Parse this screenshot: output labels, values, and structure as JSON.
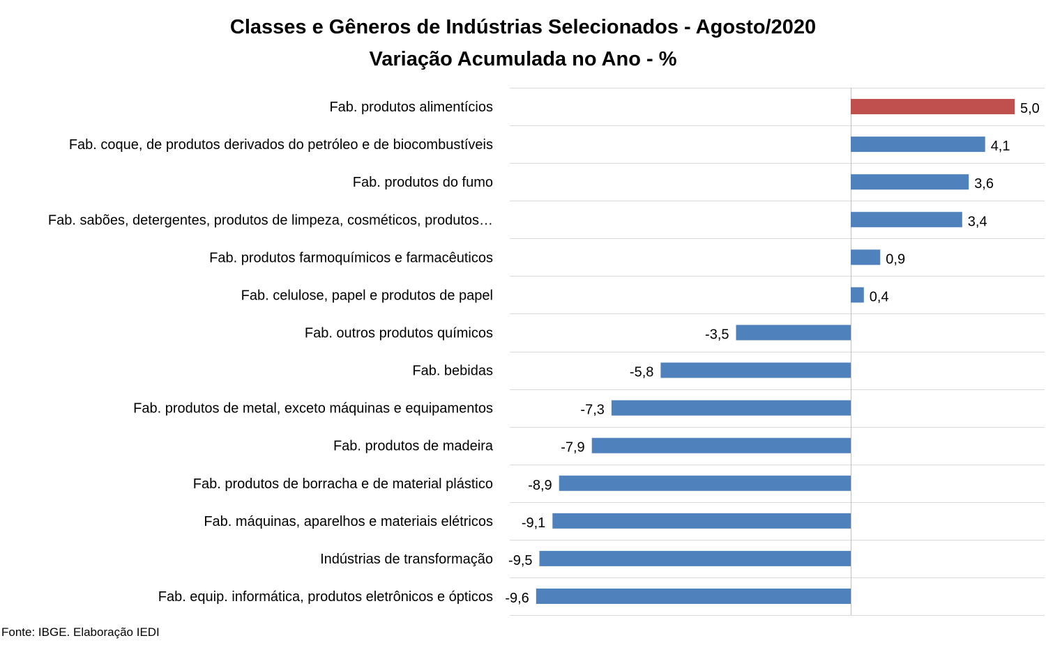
{
  "chart_data": {
    "type": "bar",
    "orientation": "horizontal",
    "title": "Classes e Gêneros de Indústrias Selecionados - Agosto/2020",
    "subtitle": "Variação Acumulada no Ano - %",
    "categories": [
      "Fab. produtos alimentícios",
      "Fab. coque, de produtos derivados do petróleo e de biocombustíveis",
      "Fab. produtos do fumo",
      "Fab. sabões, detergentes, produtos de limpeza, cosméticos, produtos…",
      "Fab. produtos farmoquímicos e farmacêuticos",
      "Fab. celulose, papel e produtos de papel",
      "Fab. outros produtos químicos",
      "Fab. bebidas",
      "Fab. produtos de metal, exceto máquinas e equipamentos",
      "Fab. produtos de madeira",
      "Fab. produtos de borracha e de material plástico",
      "Fab. máquinas, aparelhos e materiais elétricos",
      "Indústrias de transformação",
      "Fab. equip. informática, produtos eletrônicos e ópticos"
    ],
    "values": [
      5.0,
      4.1,
      3.6,
      3.4,
      0.9,
      0.4,
      -3.5,
      -5.8,
      -7.3,
      -7.9,
      -8.9,
      -9.1,
      -9.5,
      -9.6
    ],
    "value_labels": [
      "5,0",
      "4,1",
      "3,6",
      "3,4",
      "0,9",
      "0,4",
      "-3,5",
      "-5,8",
      "-7,3",
      "-7,9",
      "-8,9",
      "-9,1",
      "-9,5",
      "-9,6"
    ],
    "highlight_index": 0,
    "colors": {
      "default": "#4f81bd",
      "highlight": "#c0504d",
      "grid": "#d9d9d9",
      "axis": "#bfbfbf"
    },
    "xlim": [
      -10.5,
      6
    ],
    "grid": true,
    "legend": "none"
  },
  "source_text": "Fonte: IBGE. Elaboração IEDI"
}
